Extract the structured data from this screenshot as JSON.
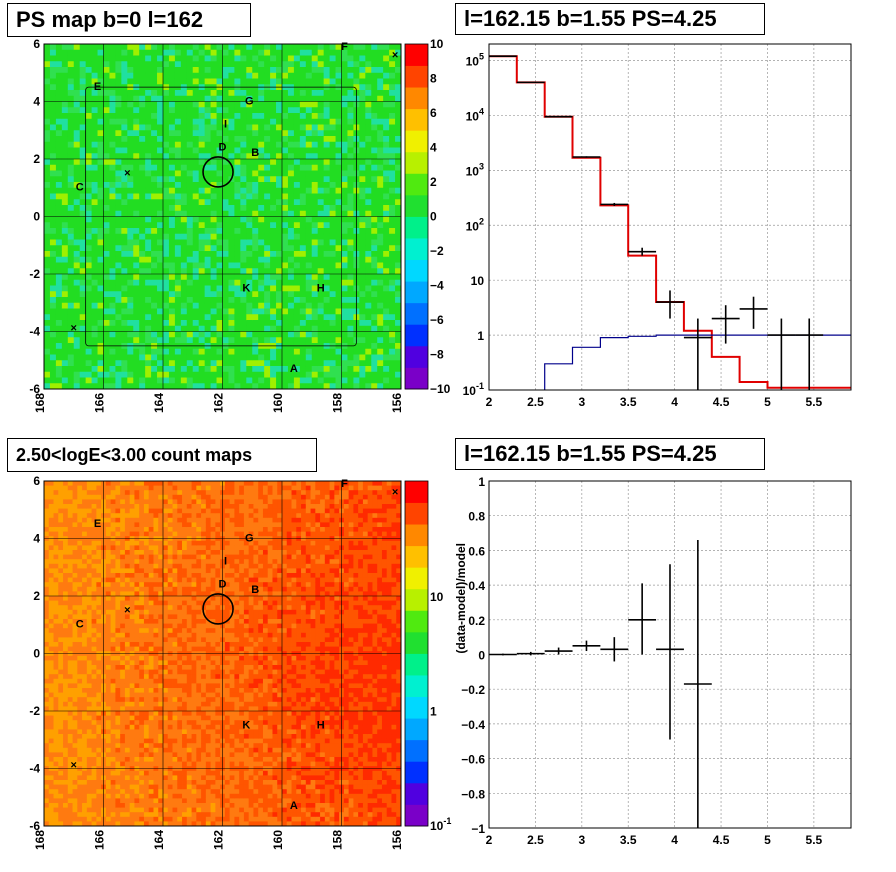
{
  "panels": {
    "tl_title": "PS map b=0 l=162",
    "tr_title": "l=162.15 b=1.55 PS=4.25",
    "bl_title": "2.50<logE<3.00 count maps",
    "br_title": "l=162.15 b=1.55 PS=4.25"
  },
  "chart_data": [
    {
      "type": "heatmap",
      "title": "PS map b=0 l=162",
      "x_ticks": [
        "168",
        "166",
        "164",
        "162",
        "160",
        "158",
        "156"
      ],
      "y_ticks": [
        "6",
        "4",
        "2",
        "0",
        "-2",
        "-4",
        "-6"
      ],
      "xlim": [
        168,
        156
      ],
      "ylim": [
        -6,
        6
      ],
      "colorbar_ticks": [
        "10",
        "8",
        "6",
        "4",
        "2",
        "0",
        "−2",
        "−4",
        "−6",
        "−8",
        "−10"
      ],
      "colorbar_range": [
        -10,
        10
      ],
      "labels": [
        {
          "text": "E",
          "l": 166.2,
          "b": 4.4
        },
        {
          "text": "F",
          "l": 157.9,
          "b": 5.8
        },
        {
          "text": "G",
          "l": 161.1,
          "b": 3.9
        },
        {
          "text": "I",
          "l": 161.9,
          "b": 3.1
        },
        {
          "text": "D",
          "l": 162.0,
          "b": 2.3
        },
        {
          "text": "B",
          "l": 160.9,
          "b": 2.1
        },
        {
          "text": "C",
          "l": 166.8,
          "b": 0.9
        },
        {
          "text": "K",
          "l": 161.2,
          "b": -2.6
        },
        {
          "text": "H",
          "l": 158.7,
          "b": -2.6
        },
        {
          "text": "A",
          "l": 159.6,
          "b": -5.4
        }
      ],
      "circle": {
        "l": 162.15,
        "b": 1.55
      }
    },
    {
      "type": "line",
      "title": "l=162.15 b=1.55 PS=4.25",
      "y_scale": "log",
      "xlim": [
        2,
        5.9
      ],
      "ylim": [
        0.1,
        200000
      ],
      "x_ticks": [
        "2",
        "2.5",
        "3",
        "3.5",
        "4",
        "4.5",
        "5",
        "5.5"
      ],
      "y_ticks": [
        "10^-1",
        "1",
        "10",
        "10^2",
        "10^3",
        "10^4",
        "10^5"
      ],
      "series": [
        {
          "color": "#e00000",
          "style": "step",
          "edges": [
            2,
            2.3,
            2.6,
            2.9,
            3.2,
            3.5,
            3.8,
            4.1,
            4.4,
            4.7,
            5.0,
            5.3,
            5.9
          ],
          "values": [
            120000,
            40000,
            9500,
            1700,
            230,
            28,
            4,
            1.2,
            0.4,
            0.14,
            0.11,
            0.11
          ]
        },
        {
          "color": "#00008b",
          "style": "step",
          "edges": [
            2.6,
            2.9,
            3.2,
            3.5,
            3.8,
            4.1,
            4.4,
            4.7,
            5.0,
            5.3,
            5.9
          ],
          "values": [
            0.3,
            0.6,
            0.9,
            0.95,
            1.0,
            1.0,
            1.0,
            1.0,
            1.0,
            1.0
          ]
        },
        {
          "color": "#000000",
          "style": "errorbar",
          "points": [
            {
              "x": 2.15,
              "y": 120000,
              "xe": 0.15,
              "lo": 119000,
              "hi": 121000
            },
            {
              "x": 2.45,
              "y": 40000,
              "xe": 0.15,
              "lo": 39500,
              "hi": 40500
            },
            {
              "x": 2.75,
              "y": 9500,
              "xe": 0.15,
              "lo": 9300,
              "hi": 9700
            },
            {
              "x": 3.05,
              "y": 1750,
              "xe": 0.15,
              "lo": 1700,
              "hi": 1800
            },
            {
              "x": 3.35,
              "y": 240,
              "xe": 0.15,
              "lo": 225,
              "hi": 255
            },
            {
              "x": 3.65,
              "y": 33,
              "xe": 0.15,
              "lo": 28,
              "hi": 39
            },
            {
              "x": 3.95,
              "y": 4,
              "xe": 0.15,
              "lo": 2.0,
              "hi": 6.5
            },
            {
              "x": 4.25,
              "y": 0.9,
              "xe": 0.15,
              "lo": 0.1,
              "hi": 2.0
            },
            {
              "x": 4.55,
              "y": 2,
              "xe": 0.15,
              "lo": 0.7,
              "hi": 3.5
            },
            {
              "x": 4.85,
              "y": 3,
              "xe": 0.15,
              "lo": 1.3,
              "hi": 5.0
            },
            {
              "x": 5.15,
              "y": 1,
              "xe": 0.15,
              "lo": 0.1,
              "hi": 2.0
            },
            {
              "x": 5.45,
              "y": 1,
              "xe": 0.15,
              "lo": 0.1,
              "hi": 2.0
            }
          ]
        }
      ]
    },
    {
      "type": "heatmap",
      "title": "2.50<logE<3.00 count maps",
      "x_ticks": [
        "168",
        "166",
        "164",
        "162",
        "160",
        "158",
        "156"
      ],
      "y_ticks": [
        "6",
        "4",
        "2",
        "0",
        "-2",
        "-4",
        "-6"
      ],
      "xlim": [
        168,
        156
      ],
      "ylim": [
        -6,
        6
      ],
      "z_scale": "log",
      "colorbar_ticks": [
        "10",
        "1",
        "10^-1"
      ],
      "labels": [
        {
          "text": "E",
          "l": 166.2,
          "b": 4.4
        },
        {
          "text": "F",
          "l": 157.9,
          "b": 5.8
        },
        {
          "text": "G",
          "l": 161.1,
          "b": 3.9
        },
        {
          "text": "I",
          "l": 161.9,
          "b": 3.1
        },
        {
          "text": "D",
          "l": 162.0,
          "b": 2.3
        },
        {
          "text": "B",
          "l": 160.9,
          "b": 2.1
        },
        {
          "text": "C",
          "l": 166.8,
          "b": 0.9
        },
        {
          "text": "K",
          "l": 161.2,
          "b": -2.6
        },
        {
          "text": "H",
          "l": 158.7,
          "b": -2.6
        },
        {
          "text": "A",
          "l": 159.6,
          "b": -5.4
        }
      ],
      "circle": {
        "l": 162.15,
        "b": 1.55
      }
    },
    {
      "type": "scatter",
      "title": "l=162.15 b=1.55 PS=4.25",
      "ylabel": "(data-model)/model",
      "xlim": [
        2,
        5.9
      ],
      "ylim": [
        -1,
        1
      ],
      "x_ticks": [
        "2",
        "2.5",
        "3",
        "3.5",
        "4",
        "4.5",
        "5",
        "5.5"
      ],
      "y_ticks": [
        "1",
        "0.8",
        "0.6",
        "0.4",
        "0.2",
        "0",
        "−0.2",
        "−0.4",
        "−0.6",
        "−0.8",
        "−1"
      ],
      "points": [
        {
          "x": 2.15,
          "y": 0.0,
          "xe": 0.15,
          "lo": -0.005,
          "hi": 0.005
        },
        {
          "x": 2.45,
          "y": 0.005,
          "xe": 0.15,
          "lo": -0.005,
          "hi": 0.015
        },
        {
          "x": 2.75,
          "y": 0.02,
          "xe": 0.15,
          "lo": 0.0,
          "hi": 0.04
        },
        {
          "x": 3.05,
          "y": 0.05,
          "xe": 0.15,
          "lo": 0.02,
          "hi": 0.08
        },
        {
          "x": 3.35,
          "y": 0.03,
          "xe": 0.15,
          "lo": -0.04,
          "hi": 0.1
        },
        {
          "x": 3.65,
          "y": 0.2,
          "xe": 0.15,
          "lo": 0.0,
          "hi": 0.41
        },
        {
          "x": 3.95,
          "y": 0.03,
          "xe": 0.15,
          "lo": -0.49,
          "hi": 0.52
        },
        {
          "x": 4.25,
          "y": -0.17,
          "xe": 0.15,
          "lo": -1.0,
          "hi": 0.66
        }
      ]
    }
  ],
  "colors": {
    "map_base": "#22dd22",
    "count_base": "#ff6a1a",
    "step_model": "#e00000",
    "step_background": "#00008b"
  }
}
